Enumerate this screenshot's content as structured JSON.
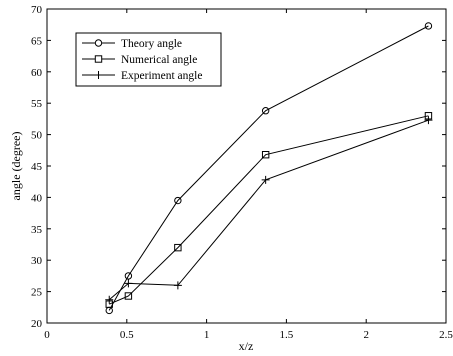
{
  "chart_data": {
    "type": "line",
    "xlabel": "x/z",
    "ylabel": "angle (degree)",
    "xlim": [
      0,
      2.5
    ],
    "ylim": [
      20,
      70
    ],
    "xticks": [
      0,
      0.5,
      1,
      1.5,
      2,
      2.5
    ],
    "xtick_labels": [
      "0",
      "0.5",
      "1",
      "1.5",
      "2",
      "2.5"
    ],
    "yticks": [
      20,
      25,
      30,
      35,
      40,
      45,
      50,
      55,
      60,
      65,
      70
    ],
    "ytick_labels": [
      "20",
      "25",
      "30",
      "35",
      "40",
      "45",
      "50",
      "55",
      "60",
      "65",
      "70"
    ],
    "grid": false,
    "legend_position": "top-left",
    "series": [
      {
        "name": "Theory angle",
        "marker": "circle",
        "x": [
          0.39,
          0.51,
          0.82,
          1.37,
          2.39
        ],
        "y": [
          22.0,
          27.5,
          39.5,
          53.8,
          67.3
        ]
      },
      {
        "name": "Numerical angle",
        "marker": "square",
        "x": [
          0.39,
          0.51,
          0.82,
          1.37,
          2.39
        ],
        "y": [
          23.0,
          24.3,
          32.0,
          46.8,
          53.0
        ]
      },
      {
        "name": "Experiment angle",
        "marker": "plus",
        "x": [
          0.39,
          0.51,
          0.82,
          1.37,
          2.39
        ],
        "y": [
          23.7,
          26.3,
          26.0,
          42.8,
          52.3
        ]
      }
    ]
  }
}
